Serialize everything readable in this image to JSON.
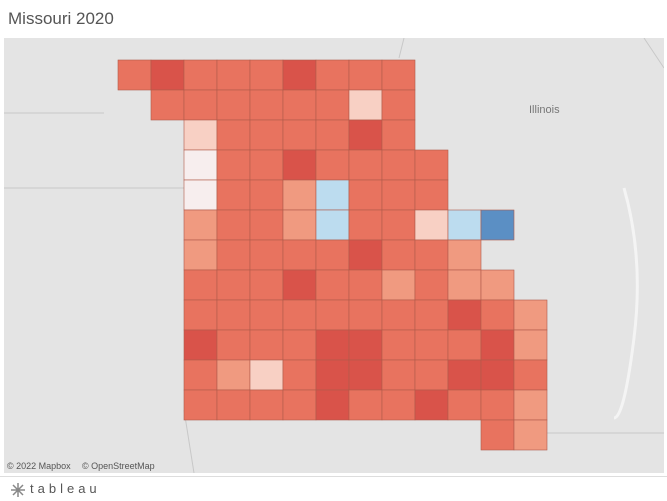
{
  "header": {
    "title": "Missouri 2020"
  },
  "map": {
    "labels": [
      "Illinois"
    ],
    "attribution": [
      "© 2022 Mapbox",
      "© OpenStreetMap"
    ]
  },
  "footer": {
    "logo": "tableau"
  }
}
